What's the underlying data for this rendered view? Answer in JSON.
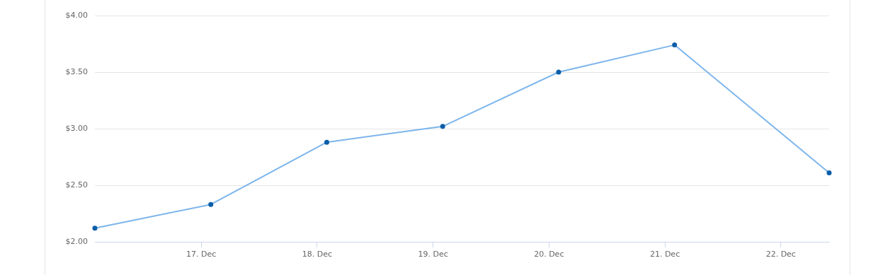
{
  "chart_data": {
    "type": "line",
    "x": [
      "--12-16T02:00",
      "--12-17T02:00",
      "--12-18T02:00",
      "--12-19T02:00",
      "--12-20T02:00",
      "--12-21T02:00",
      "--12-22T10:00"
    ],
    "series": [
      {
        "color": "#7cb5ec",
        "values": [
          2.12,
          2.33,
          2.88,
          3.02,
          3.5,
          3.74,
          2.61
        ]
      }
    ],
    "xlim": [
      "--12-16T02:00",
      "--12-22T10:00"
    ],
    "xticks": [
      {
        "value": "--12-17",
        "label": "17. Dec"
      },
      {
        "value": "--12-18",
        "label": "18. Dec"
      },
      {
        "value": "--12-19",
        "label": "19. Dec"
      },
      {
        "value": "--12-20",
        "label": "20. Dec"
      },
      {
        "value": "--12-21",
        "label": "21. Dec"
      },
      {
        "value": "--12-22",
        "label": "22. Dec"
      }
    ],
    "ylim": [
      2,
      4
    ],
    "yticks": [
      {
        "value": 2,
        "label": "$2.00"
      },
      {
        "value": 2.5,
        "label": "$2.50"
      },
      {
        "value": 3,
        "label": "$3.00"
      },
      {
        "value": 3.5,
        "label": "$3.50"
      },
      {
        "value": 4,
        "label": "$4.00"
      }
    ],
    "grid": "y",
    "legend": false,
    "marker": "circle",
    "line_style": "solid"
  }
}
